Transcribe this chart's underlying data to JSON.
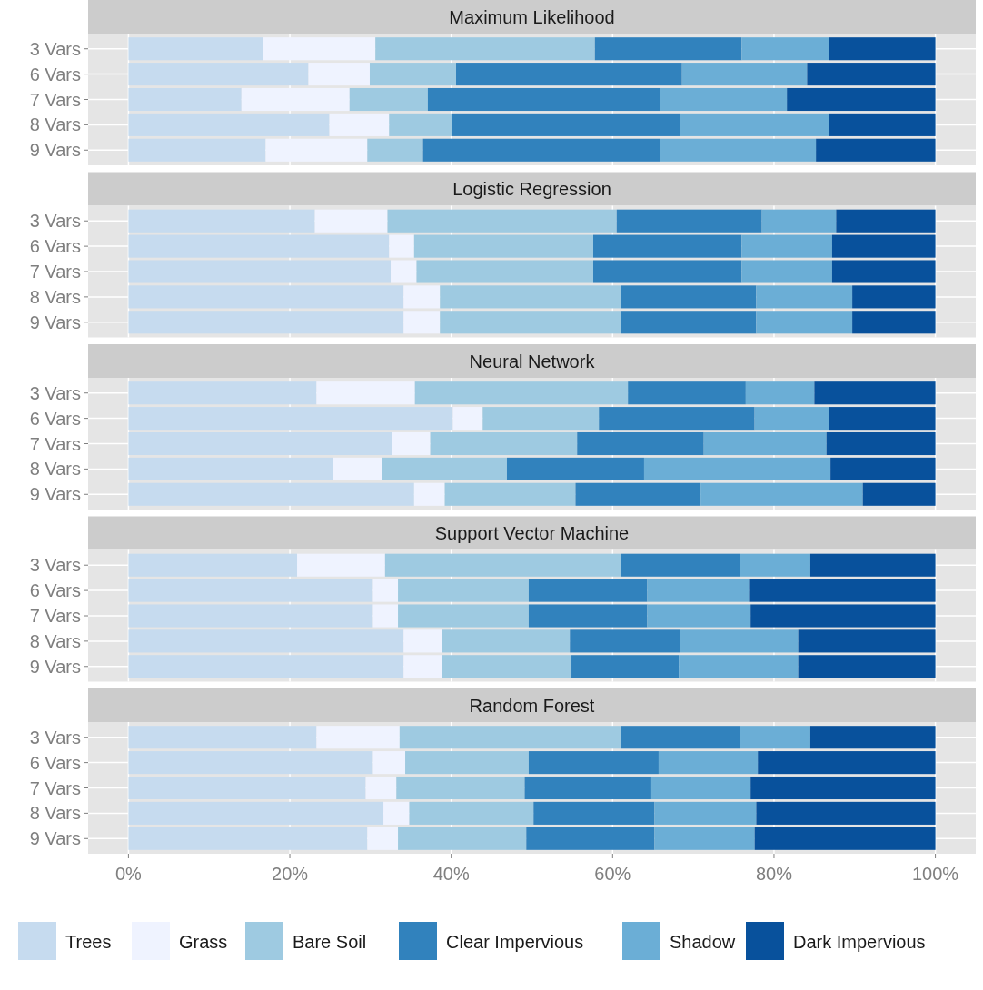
{
  "chart_data": [
    {
      "type": "bar",
      "orientation": "horizontal",
      "stacked": true,
      "title": "Maximum Likelihood",
      "categories": [
        "3 Vars",
        "6 Vars",
        "7 Vars",
        "8 Vars",
        "9 Vars"
      ],
      "xlim": [
        -5,
        105
      ],
      "xticks": [
        {
          "value": 0,
          "label": null
        },
        {
          "value": 20,
          "label": null
        },
        {
          "value": 40,
          "label": null
        },
        {
          "value": 60,
          "label": null
        },
        {
          "value": 80,
          "label": null
        },
        {
          "value": 100,
          "label": null
        }
      ],
      "grid": true,
      "tick_labels": "y",
      "series": [
        {
          "color": "#c6dbef",
          "values": [
            16.7,
            22.3,
            14.0,
            24.9,
            17.0
          ]
        },
        {
          "color": "#eff3ff",
          "values": [
            13.9,
            7.6,
            13.4,
            7.4,
            12.6
          ]
        },
        {
          "color": "#9ecae1",
          "values": [
            27.2,
            10.7,
            9.7,
            7.8,
            6.9
          ]
        },
        {
          "color": "#3182bd",
          "values": [
            18.2,
            28.0,
            28.8,
            28.3,
            29.4
          ]
        },
        {
          "color": "#6baed6",
          "values": [
            10.8,
            15.5,
            15.7,
            18.4,
            19.3
          ]
        },
        {
          "color": "#08519c",
          "values": [
            13.2,
            15.9,
            18.4,
            13.2,
            14.8
          ]
        }
      ]
    },
    {
      "type": "bar",
      "orientation": "horizontal",
      "stacked": true,
      "title": "Logistic Regression",
      "categories": [
        "3 Vars",
        "6 Vars",
        "7 Vars",
        "8 Vars",
        "9 Vars"
      ],
      "xlim": [
        -5,
        105
      ],
      "xticks": [
        {
          "value": 0,
          "label": null
        },
        {
          "value": 20,
          "label": null
        },
        {
          "value": 40,
          "label": null
        },
        {
          "value": 60,
          "label": null
        },
        {
          "value": 80,
          "label": null
        },
        {
          "value": 100,
          "label": null
        }
      ],
      "grid": true,
      "tick_labels": "y",
      "series": [
        {
          "color": "#c6dbef",
          "values": [
            23.1,
            32.3,
            32.5,
            34.1,
            34.1
          ]
        },
        {
          "color": "#eff3ff",
          "values": [
            9.0,
            3.1,
            3.2,
            4.5,
            4.5
          ]
        },
        {
          "color": "#9ecae1",
          "values": [
            28.4,
            22.2,
            21.9,
            22.4,
            22.4
          ]
        },
        {
          "color": "#3182bd",
          "values": [
            18.0,
            18.4,
            18.4,
            16.8,
            16.8
          ]
        },
        {
          "color": "#6baed6",
          "values": [
            9.2,
            11.2,
            11.2,
            11.9,
            11.9
          ]
        },
        {
          "color": "#08519c",
          "values": [
            12.3,
            12.8,
            12.8,
            10.3,
            10.3
          ]
        }
      ]
    },
    {
      "type": "bar",
      "orientation": "horizontal",
      "stacked": true,
      "title": "Neural Network",
      "categories": [
        "3 Vars",
        "6 Vars",
        "7 Vars",
        "8 Vars",
        "9 Vars"
      ],
      "xlim": [
        -5,
        105
      ],
      "xticks": [
        {
          "value": 0,
          "label": null
        },
        {
          "value": 20,
          "label": null
        },
        {
          "value": 40,
          "label": null
        },
        {
          "value": 60,
          "label": null
        },
        {
          "value": 80,
          "label": null
        },
        {
          "value": 100,
          "label": null
        }
      ],
      "grid": true,
      "tick_labels": "y",
      "series": [
        {
          "color": "#c6dbef",
          "values": [
            23.3,
            40.2,
            32.7,
            25.3,
            35.4
          ]
        },
        {
          "color": "#eff3ff",
          "values": [
            12.2,
            3.7,
            4.7,
            6.1,
            3.8
          ]
        },
        {
          "color": "#9ecae1",
          "values": [
            26.4,
            14.4,
            18.2,
            15.5,
            16.2
          ]
        },
        {
          "color": "#3182bd",
          "values": [
            14.6,
            19.3,
            15.7,
            17.0,
            15.5
          ]
        },
        {
          "color": "#6baed6",
          "values": [
            8.5,
            9.2,
            15.2,
            23.1,
            20.1
          ]
        },
        {
          "color": "#08519c",
          "values": [
            15.0,
            13.2,
            13.5,
            13.0,
            9.0
          ]
        }
      ]
    },
    {
      "type": "bar",
      "orientation": "horizontal",
      "stacked": true,
      "title": "Support Vector Machine",
      "categories": [
        "3 Vars",
        "6 Vars",
        "7 Vars",
        "8 Vars",
        "9 Vars"
      ],
      "xlim": [
        -5,
        105
      ],
      "xticks": [
        {
          "value": 0,
          "label": null
        },
        {
          "value": 20,
          "label": null
        },
        {
          "value": 40,
          "label": null
        },
        {
          "value": 60,
          "label": null
        },
        {
          "value": 80,
          "label": null
        },
        {
          "value": 100,
          "label": null
        }
      ],
      "grid": true,
      "tick_labels": "y",
      "series": [
        {
          "color": "#c6dbef",
          "values": [
            20.9,
            30.3,
            30.3,
            34.1,
            34.1
          ]
        },
        {
          "color": "#eff3ff",
          "values": [
            10.9,
            3.1,
            3.1,
            4.7,
            4.7
          ]
        },
        {
          "color": "#9ecae1",
          "values": [
            29.2,
            16.2,
            16.2,
            15.9,
            16.1
          ]
        },
        {
          "color": "#3182bd",
          "values": [
            14.8,
            14.7,
            14.7,
            13.7,
            13.3
          ]
        },
        {
          "color": "#6baed6",
          "values": [
            8.7,
            12.6,
            12.8,
            14.6,
            14.8
          ]
        },
        {
          "color": "#08519c",
          "values": [
            15.5,
            23.1,
            22.9,
            17.0,
            17.0
          ]
        }
      ]
    },
    {
      "type": "bar",
      "orientation": "horizontal",
      "stacked": true,
      "title": "Random Forest",
      "categories": [
        "3 Vars",
        "6 Vars",
        "7 Vars",
        "8 Vars",
        "9 Vars"
      ],
      "xlim": [
        -5,
        105
      ],
      "xticks": [
        {
          "value": 0,
          "label": "0%"
        },
        {
          "value": 20,
          "label": "20%"
        },
        {
          "value": 40,
          "label": "40%"
        },
        {
          "value": 60,
          "label": "60%"
        },
        {
          "value": 80,
          "label": "80%"
        },
        {
          "value": 100,
          "label": "100%"
        }
      ],
      "grid": true,
      "legend": "bottom",
      "series": [
        {
          "name": "Trees",
          "color": "#c6dbef",
          "values": [
            23.3,
            30.3,
            29.4,
            31.6,
            29.6
          ]
        },
        {
          "name": "Grass",
          "color": "#eff3ff",
          "values": [
            10.3,
            4.0,
            3.8,
            3.2,
            3.8
          ]
        },
        {
          "name": "Bare Soil",
          "color": "#9ecae1",
          "values": [
            27.4,
            15.3,
            15.9,
            15.4,
            15.9
          ]
        },
        {
          "name": "Clear Impervious",
          "color": "#3182bd",
          "values": [
            14.8,
            16.1,
            15.7,
            15.0,
            15.9
          ]
        },
        {
          "name": "Shadow",
          "color": "#6baed6",
          "values": [
            8.7,
            12.3,
            12.3,
            12.6,
            12.4
          ]
        },
        {
          "name": "Dark Impervious",
          "color": "#08519c",
          "values": [
            15.5,
            22.0,
            22.9,
            22.2,
            22.4
          ]
        }
      ]
    }
  ]
}
